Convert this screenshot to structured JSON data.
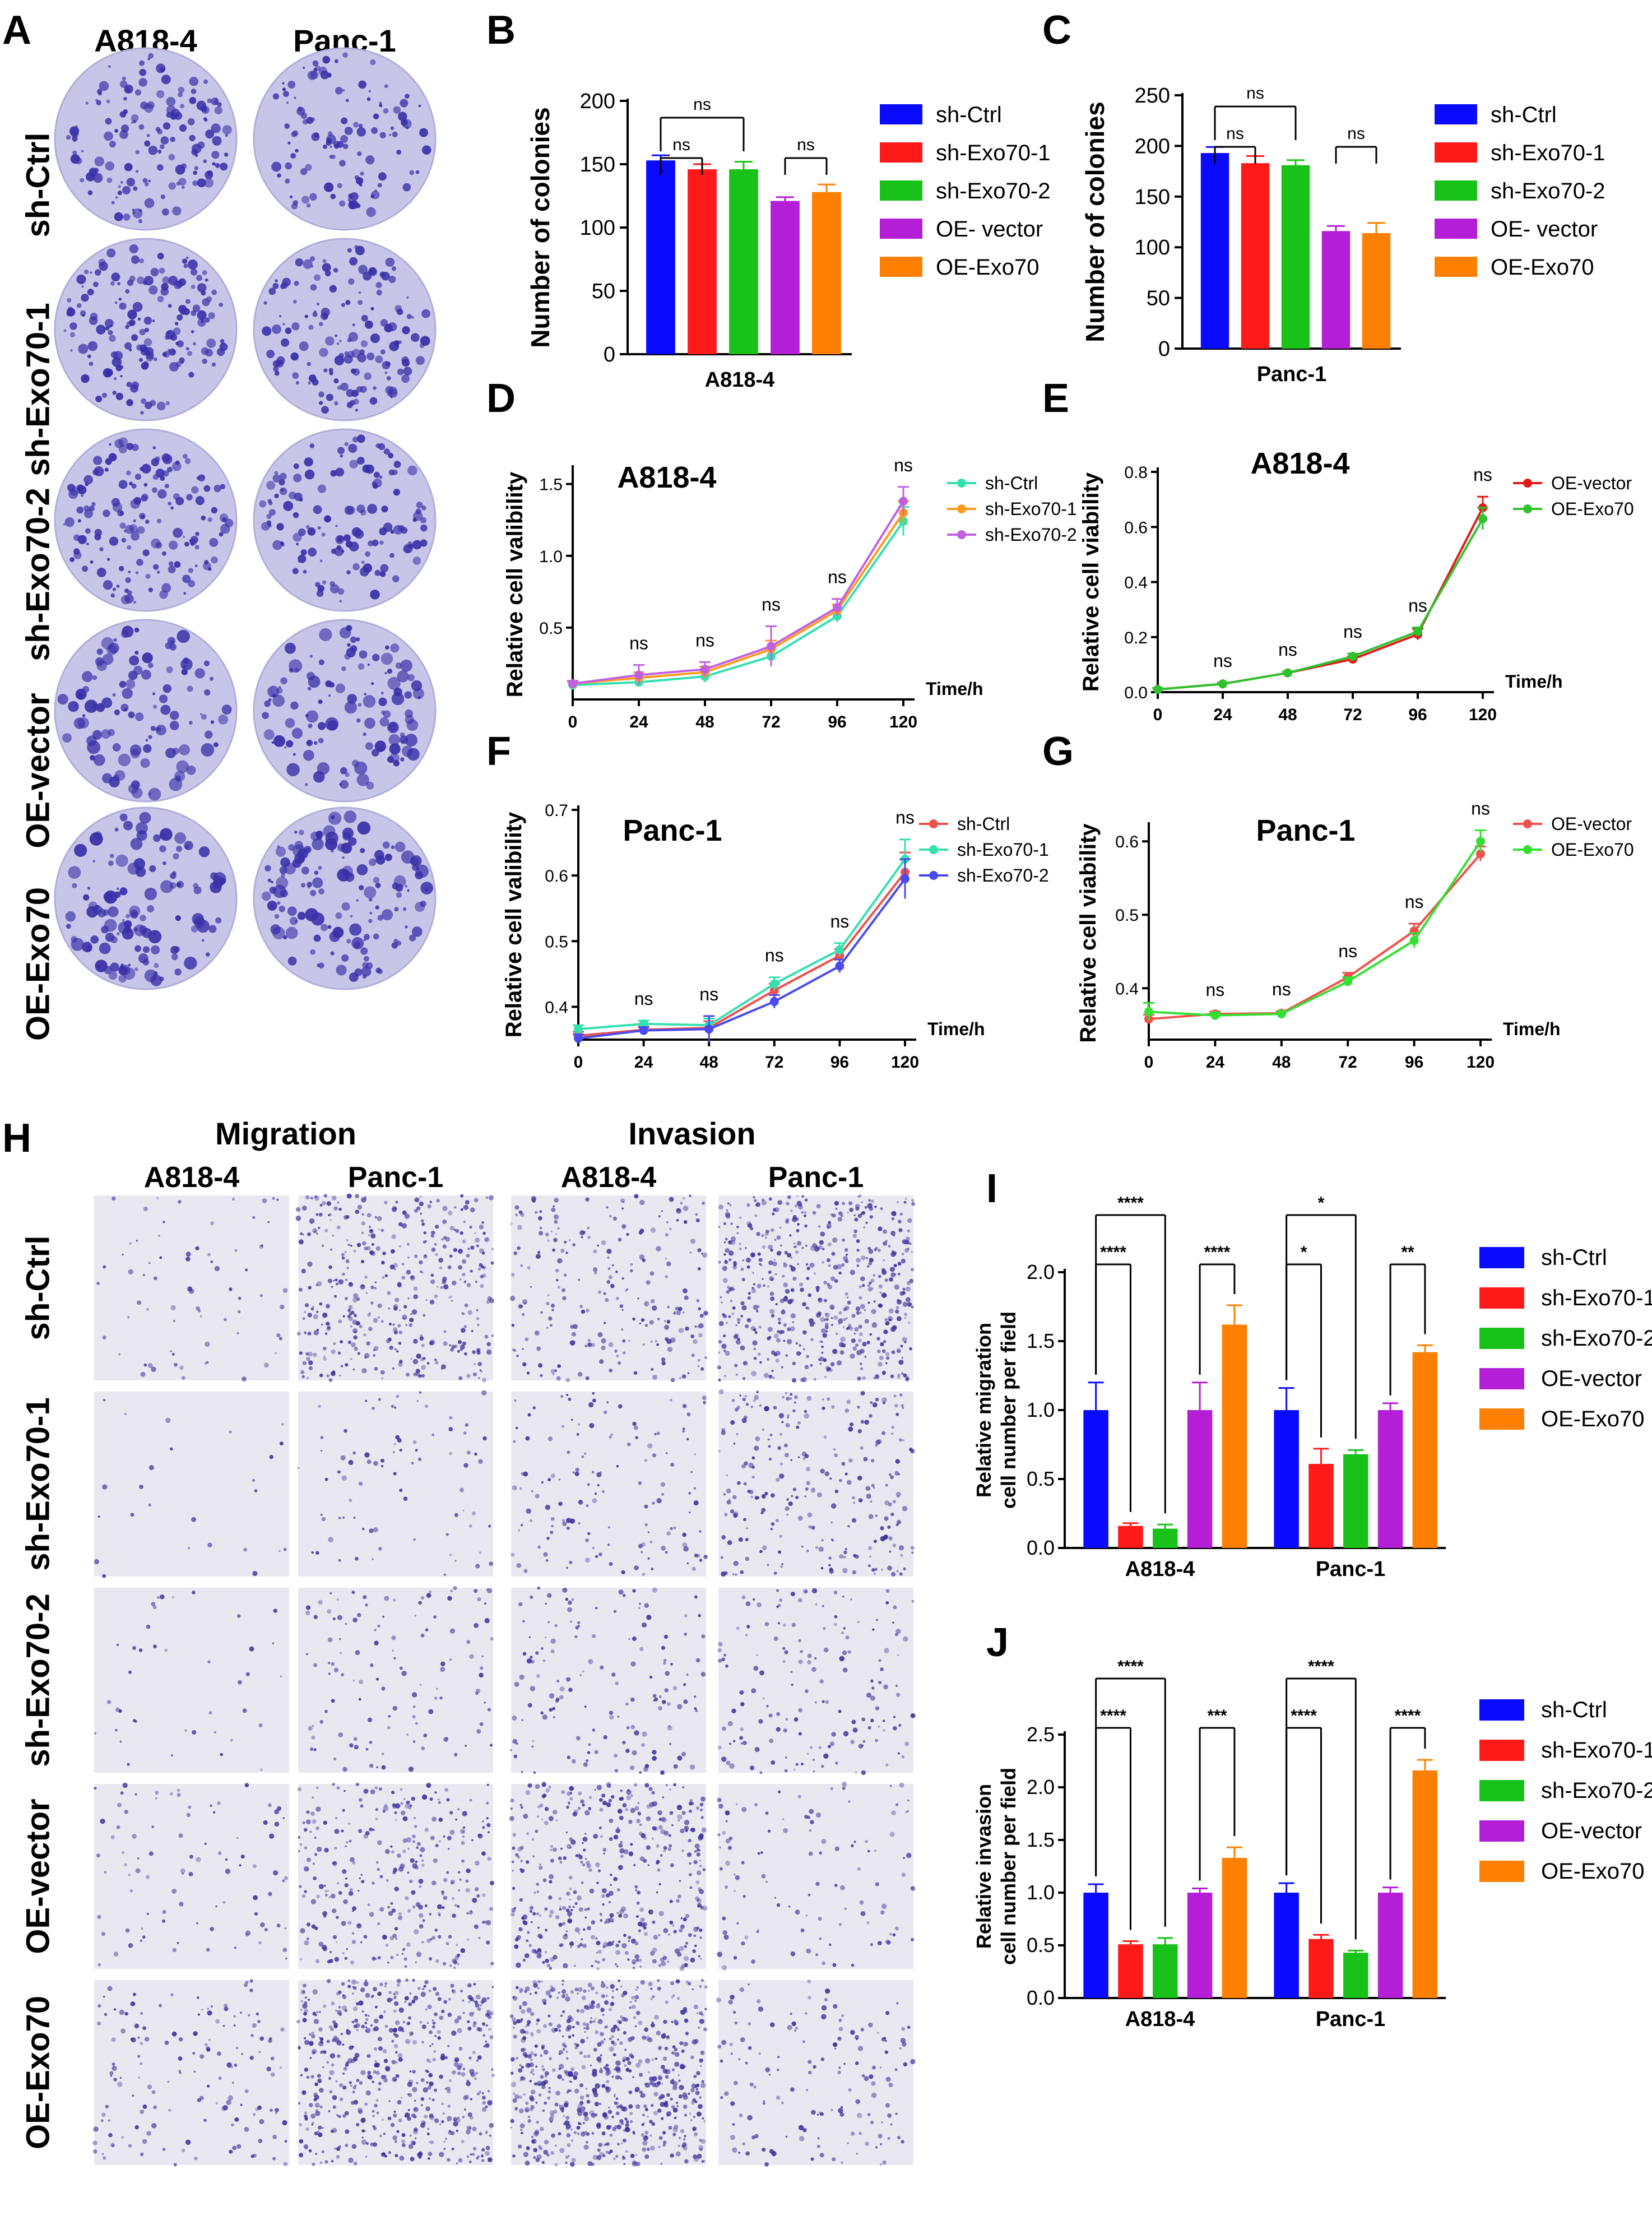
{
  "panel_letters": {
    "A": "A",
    "B": "B",
    "C": "C",
    "D": "D",
    "E": "E",
    "F": "F",
    "G": "G",
    "H": "H",
    "I": "I",
    "J": "J"
  },
  "colors": {
    "sh_ctrl": "#0a0aff",
    "sh_exo70_1": "#ff1a1a",
    "sh_exo70_2": "#19c219",
    "oe_vector": "#b41ed7",
    "oe_exo70": "#ff8000",
    "dish_bg": "#c8c6e8",
    "colony": "#3a2fa8"
  },
  "panelA": {
    "col_labels": [
      "A818-4",
      "Panc-1"
    ],
    "row_labels": [
      "sh-Ctrl",
      "sh-Exo70-1",
      "sh-Exo70-2",
      "OE-vector",
      "OE-Exo70"
    ]
  },
  "panelH": {
    "group_labels": [
      "Migration",
      "Invasion"
    ],
    "col_labels": [
      "A818-4",
      "Panc-1",
      "A818-4",
      "Panc-1"
    ],
    "row_labels": [
      "sh-Ctrl",
      "sh-Exo70-1",
      "sh-Exo70-2",
      "OE-vector",
      "OE-Exo70"
    ]
  },
  "chart_data": [
    {
      "id": "B",
      "type": "bar",
      "xlabel": "A818-4",
      "ylabel": "Number of colonies",
      "ylim": [
        0,
        200
      ],
      "yticks": [
        "0",
        "50",
        "100",
        "150",
        "200"
      ],
      "categories": [
        "sh-Ctrl",
        "sh-Exo70-1",
        "sh-Exo70-2",
        "OE- vector",
        "OE-Exo70"
      ],
      "values": [
        153,
        146,
        146,
        121,
        128
      ],
      "errors": [
        4,
        4,
        6,
        3,
        6
      ],
      "legend": [
        "sh-Ctrl",
        "sh-Exo70-1",
        "sh-Exo70-2",
        "OE- vector",
        "OE-Exo70"
      ],
      "annotations": [
        {
          "from": 0,
          "to": 1,
          "label": "ns",
          "level": 1
        },
        {
          "from": 0,
          "to": 2,
          "label": "ns",
          "level": 2
        },
        {
          "from": 3,
          "to": 4,
          "label": "ns",
          "level": 1
        }
      ]
    },
    {
      "id": "C",
      "type": "bar",
      "xlabel": "Panc-1",
      "ylabel": "Number of colonies",
      "ylim": [
        0,
        250
      ],
      "yticks": [
        "0",
        "50",
        "100",
        "150",
        "200",
        "250"
      ],
      "categories": [
        "sh-Ctrl",
        "sh-Exo70-1",
        "sh-Exo70-2",
        "OE- vector",
        "OE-Exo70"
      ],
      "values": [
        193,
        183,
        181,
        116,
        114
      ],
      "errors": [
        6,
        7,
        5,
        5,
        10
      ],
      "legend": [
        "sh-Ctrl",
        "sh-Exo70-1",
        "sh-Exo70-2",
        "OE- vector",
        "OE-Exo70"
      ],
      "annotations": [
        {
          "from": 0,
          "to": 1,
          "label": "ns",
          "level": 1
        },
        {
          "from": 0,
          "to": 2,
          "label": "ns",
          "level": 2
        },
        {
          "from": 3,
          "to": 4,
          "label": "ns",
          "level": 1
        }
      ]
    },
    {
      "id": "D",
      "type": "line",
      "title": "A818-4",
      "ylabel": "Relative cell valibility",
      "xlabel": "Time/h",
      "x": [
        0,
        24,
        48,
        72,
        96,
        120
      ],
      "xticks": [
        "0",
        "24",
        "48",
        "72",
        "96",
        "120"
      ],
      "ylim": [
        0,
        1.6
      ],
      "yticks": [
        {
          "v": 0.5,
          "t": "0.5"
        },
        {
          "v": 1.0,
          "t": "1.0"
        },
        {
          "v": 1.5,
          "t": "1.5"
        }
      ],
      "series": [
        {
          "name": "sh-Ctrl",
          "color": "#33e0b0",
          "values": [
            0.1,
            0.12,
            0.16,
            0.3,
            0.58,
            1.24
          ],
          "err": [
            0.02,
            0.03,
            0.04,
            0.05,
            0.04,
            0.1
          ]
        },
        {
          "name": "sh-Exo70-1",
          "color": "#ff9a1a",
          "values": [
            0.11,
            0.15,
            0.19,
            0.35,
            0.62,
            1.3
          ],
          "err": [
            0.02,
            0.04,
            0.04,
            0.06,
            0.04,
            0.08
          ]
        },
        {
          "name": "sh-Exo70-2",
          "color": "#c060e0",
          "values": [
            0.11,
            0.17,
            0.21,
            0.37,
            0.64,
            1.38
          ],
          "err": [
            0.02,
            0.07,
            0.05,
            0.14,
            0.06,
            0.1
          ]
        }
      ],
      "ns": [
        "ns",
        "ns",
        "ns",
        "ns",
        "ns"
      ]
    },
    {
      "id": "E",
      "type": "line",
      "title": "A818-4",
      "ylabel": "Relative cell viability",
      "xlabel": "Time/h",
      "x": [
        0,
        24,
        48,
        72,
        96,
        120
      ],
      "xticks": [
        "0",
        "24",
        "48",
        "72",
        "96",
        "120"
      ],
      "ylim": [
        0,
        0.8
      ],
      "yticks": [
        {
          "v": 0,
          "t": "0.0"
        },
        {
          "v": 0.2,
          "t": "0.2"
        },
        {
          "v": 0.4,
          "t": "0.4"
        },
        {
          "v": 0.6,
          "t": "0.6"
        },
        {
          "v": 0.8,
          "t": "0.8"
        }
      ],
      "series": [
        {
          "name": "OE-vector",
          "color": "#e31a1a",
          "values": [
            0.01,
            0.03,
            0.07,
            0.12,
            0.21,
            0.67
          ],
          "err": [
            0.005,
            0.005,
            0.005,
            0.01,
            0.02,
            0.04
          ]
        },
        {
          "name": "OE-Exo70",
          "color": "#2fc22f",
          "values": [
            0.01,
            0.03,
            0.07,
            0.13,
            0.22,
            0.63
          ],
          "err": [
            0.005,
            0.005,
            0.005,
            0.01,
            0.015,
            0.04
          ]
        }
      ],
      "ns": [
        "ns",
        "ns",
        "ns",
        "ns",
        "ns"
      ]
    },
    {
      "id": "F",
      "type": "line",
      "title": "Panc-1",
      "ylabel": "Relative cell valibility",
      "xlabel": "Time/h",
      "x": [
        0,
        24,
        48,
        72,
        96,
        120
      ],
      "xticks": [
        "0",
        "24",
        "48",
        "72",
        "96",
        "120"
      ],
      "ylim": [
        0.35,
        0.7
      ],
      "yticks": [
        {
          "v": 0.4,
          "t": "0.4"
        },
        {
          "v": 0.5,
          "t": "0.5"
        },
        {
          "v": 0.6,
          "t": "0.6"
        },
        {
          "v": 0.7,
          "t": "0.7"
        }
      ],
      "series": [
        {
          "name": "sh-Ctrl",
          "color": "#f0504a",
          "values": [
            0.356,
            0.365,
            0.368,
            0.425,
            0.478,
            0.605
          ],
          "err": [
            0.006,
            0.005,
            0.01,
            0.01,
            0.01,
            0.03
          ]
        },
        {
          "name": "sh-Exo70-1",
          "color": "#33e0b0",
          "values": [
            0.366,
            0.374,
            0.372,
            0.435,
            0.487,
            0.625
          ],
          "err": [
            0.006,
            0.005,
            0.01,
            0.01,
            0.01,
            0.03
          ]
        },
        {
          "name": "sh-Exo70-2",
          "color": "#4a4af0",
          "values": [
            0.352,
            0.364,
            0.366,
            0.408,
            0.462,
            0.595
          ],
          "err": [
            0.006,
            0.005,
            0.02,
            0.01,
            0.01,
            0.03
          ]
        }
      ],
      "ns": [
        "ns",
        "ns",
        "ns",
        "ns",
        "ns"
      ]
    },
    {
      "id": "G",
      "type": "line",
      "title": "Panc-1",
      "ylabel": "Relative cell viability",
      "xlabel": "Time/h",
      "x": [
        0,
        24,
        48,
        72,
        96,
        120
      ],
      "xticks": [
        "0",
        "24",
        "48",
        "72",
        "96",
        "120"
      ],
      "ylim": [
        0.33,
        0.62
      ],
      "yticks": [
        {
          "v": 0.4,
          "t": "0.4"
        },
        {
          "v": 0.5,
          "t": "0.5"
        },
        {
          "v": 0.6,
          "t": "0.6"
        }
      ],
      "series": [
        {
          "name": "OE-vector",
          "color": "#f0504a",
          "values": [
            0.358,
            0.365,
            0.366,
            0.415,
            0.478,
            0.583
          ],
          "err": [
            0.006,
            0.003,
            0.003,
            0.006,
            0.01,
            0.01
          ]
        },
        {
          "name": "OE-Exo70",
          "color": "#33e033",
          "values": [
            0.368,
            0.363,
            0.365,
            0.409,
            0.465,
            0.6
          ],
          "err": [
            0.012,
            0.003,
            0.003,
            0.006,
            0.01,
            0.015
          ]
        }
      ],
      "ns": [
        "ns",
        "ns",
        "ns",
        "ns",
        "ns"
      ]
    },
    {
      "id": "I",
      "type": "bar",
      "ylabel": "Relative migration",
      "ylabel2": "cell number per field",
      "ylim": [
        0,
        2.0
      ],
      "yticks": [
        "0.0",
        "0.5",
        "1.0",
        "1.5",
        "2.0"
      ],
      "groups": [
        "A818-4",
        "Panc-1"
      ],
      "series_names": [
        "sh-Ctrl",
        "sh-Exo70-1",
        "sh-Exo70-2",
        "OE-vector",
        "OE-Exo70"
      ],
      "values": [
        [
          1.0,
          0.16,
          0.14,
          1.0,
          1.62
        ],
        [
          1.0,
          0.61,
          0.68,
          1.0,
          1.42
        ]
      ],
      "errors": [
        [
          0.2,
          0.02,
          0.03,
          0.2,
          0.14
        ],
        [
          0.16,
          0.11,
          0.03,
          0.05,
          0.05
        ]
      ],
      "legend": [
        "sh-Ctrl",
        "sh-Exo70-1",
        "sh-Exo70-2",
        "OE-vector",
        "OE-Exo70"
      ],
      "annotations": [
        {
          "g": 0,
          "from": 0,
          "to": 1,
          "label": "****",
          "level": 1
        },
        {
          "g": 0,
          "from": 0,
          "to": 2,
          "label": "****",
          "level": 2
        },
        {
          "g": 0,
          "from": 3,
          "to": 4,
          "label": "****",
          "level": 1
        },
        {
          "g": 1,
          "from": 0,
          "to": 1,
          "label": "*",
          "level": 1
        },
        {
          "g": 1,
          "from": 0,
          "to": 2,
          "label": "*",
          "level": 2
        },
        {
          "g": 1,
          "from": 3,
          "to": 4,
          "label": "**",
          "level": 1
        }
      ]
    },
    {
      "id": "J",
      "type": "bar",
      "ylabel": "Relative invasion",
      "ylabel2": "cell number per field",
      "ylim": [
        0,
        2.5
      ],
      "yticks": [
        "0.0",
        "0.5",
        "1.0",
        "1.5",
        "2.0",
        "2.5"
      ],
      "groups": [
        "A818-4",
        "Panc-1"
      ],
      "series_names": [
        "sh-Ctrl",
        "sh-Exo70-1",
        "sh-Exo70-2",
        "OE-vector",
        "OE-Exo70"
      ],
      "values": [
        [
          1.0,
          0.51,
          0.51,
          1.0,
          1.33
        ],
        [
          1.0,
          0.56,
          0.43,
          1.0,
          2.16
        ]
      ],
      "errors": [
        [
          0.08,
          0.03,
          0.06,
          0.04,
          0.1
        ],
        [
          0.09,
          0.04,
          0.02,
          0.05,
          0.1
        ]
      ],
      "legend": [
        "sh-Ctrl",
        "sh-Exo70-1",
        "sh-Exo70-2",
        "OE-vector",
        "OE-Exo70"
      ],
      "annotations": [
        {
          "g": 0,
          "from": 0,
          "to": 1,
          "label": "****",
          "level": 1
        },
        {
          "g": 0,
          "from": 0,
          "to": 2,
          "label": "****",
          "level": 2
        },
        {
          "g": 0,
          "from": 3,
          "to": 4,
          "label": "***",
          "level": 1
        },
        {
          "g": 1,
          "from": 0,
          "to": 1,
          "label": "****",
          "level": 1
        },
        {
          "g": 1,
          "from": 0,
          "to": 2,
          "label": "****",
          "level": 2
        },
        {
          "g": 1,
          "from": 3,
          "to": 4,
          "label": "****",
          "level": 1
        }
      ]
    }
  ]
}
